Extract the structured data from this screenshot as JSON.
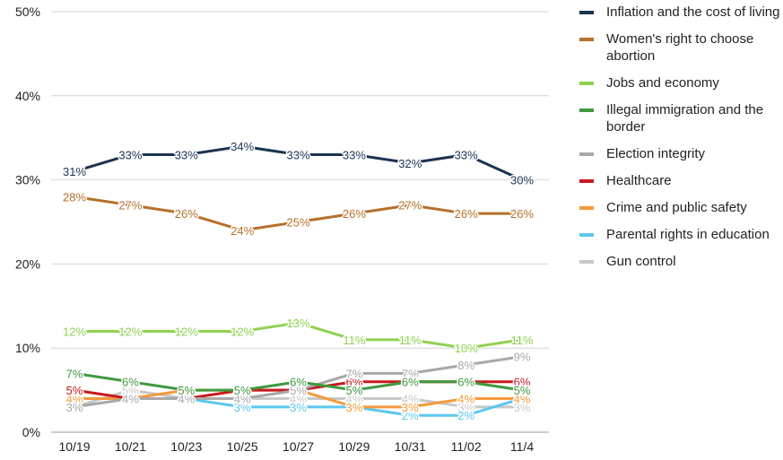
{
  "chart_data": {
    "type": "line",
    "title": "",
    "xlabel": "",
    "ylabel": "",
    "categories": [
      "10/19",
      "10/21",
      "10/23",
      "10/25",
      "10/27",
      "10/29",
      "10/31",
      "11/02",
      "11/4"
    ],
    "ylim": [
      0,
      50
    ],
    "yticks": [
      "0%",
      "10%",
      "20%",
      "30%",
      "40%",
      "50%"
    ],
    "grid": true,
    "legend_position": "right",
    "series": [
      {
        "name": "Inflation and the cost of living",
        "color": "#1b3350",
        "values": [
          31,
          33,
          33,
          34,
          33,
          33,
          32,
          33,
          30
        ]
      },
      {
        "name": "Women's right to choose abortion",
        "color": "#b5702b",
        "values": [
          28,
          27,
          26,
          24,
          25,
          26,
          27,
          26,
          26
        ]
      },
      {
        "name": "Jobs and economy",
        "color": "#8fd14f",
        "values": [
          12,
          12,
          12,
          12,
          13,
          11,
          11,
          10,
          11
        ]
      },
      {
        "name": "Illegal immigration and the border",
        "color": "#3f9a3f",
        "values": [
          7,
          6,
          5,
          5,
          6,
          5,
          6,
          6,
          5
        ]
      },
      {
        "name": "Election integrity",
        "color": "#a8a8a8",
        "values": [
          3,
          4,
          4,
          4,
          5,
          7,
          7,
          8,
          9
        ]
      },
      {
        "name": "Healthcare",
        "color": "#c8191e",
        "values": [
          5,
          4,
          4,
          5,
          5,
          6,
          6,
          6,
          6
        ]
      },
      {
        "name": "Crime and public safety",
        "color": "#f39a3c",
        "values": [
          4,
          4,
          5,
          5,
          5,
          3,
          3,
          4,
          4
        ]
      },
      {
        "name": "Parental rights in education",
        "color": "#5cc8ef",
        "values": [
          4,
          4,
          4,
          3,
          3,
          3,
          2,
          2,
          4
        ]
      },
      {
        "name": "Gun control",
        "color": "#c8c8c8",
        "values": [
          3,
          5,
          4,
          4,
          4,
          4,
          4,
          3,
          3
        ]
      }
    ]
  }
}
